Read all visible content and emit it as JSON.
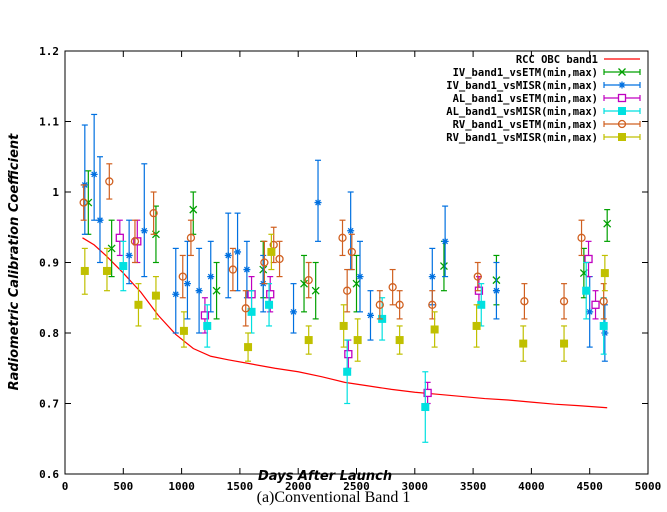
{
  "caption": "(a)Conventional Band 1",
  "chart_data": {
    "type": "scatter",
    "xlabel": "Days After Launch",
    "ylabel": "Radiometric Calibration Coefficient",
    "xlim": [
      0,
      5000
    ],
    "ylim": [
      0.6,
      1.2
    ],
    "xticks": [
      "0",
      "500",
      "1000",
      "1500",
      "2000",
      "2500",
      "3000",
      "3500",
      "4000",
      "4500",
      "5000"
    ],
    "yticks": [
      "0.6",
      "0.7",
      "0.8",
      "0.9",
      "1",
      "1.1",
      "1.2"
    ],
    "grid": false,
    "legend_position": "top-right",
    "series": [
      {
        "name": "RCC OBC band1",
        "kind": "line",
        "color": "#ff0000",
        "x": [
          150,
          250,
          350,
          500,
          650,
          800,
          950,
          1100,
          1250,
          1400,
          1600,
          1800,
          2000,
          2200,
          2400,
          2600,
          2800,
          3000,
          3200,
          3400,
          3600,
          3800,
          4000,
          4200,
          4400,
          4650
        ],
        "y": [
          0.935,
          0.925,
          0.91,
          0.885,
          0.858,
          0.825,
          0.798,
          0.778,
          0.767,
          0.762,
          0.756,
          0.75,
          0.745,
          0.738,
          0.73,
          0.725,
          0.72,
          0.716,
          0.713,
          0.71,
          0.707,
          0.705,
          0.702,
          0.699,
          0.697,
          0.694
        ]
      },
      {
        "name": "IV_band1_vsETM(min,max)",
        "kind": "errorbars",
        "marker": "x",
        "color": "#00a000",
        "points": [
          {
            "x": 200,
            "y": 0.985,
            "lo": 0.94,
            "hi": 1.03
          },
          {
            "x": 400,
            "y": 0.92,
            "lo": 0.88,
            "hi": 0.96
          },
          {
            "x": 780,
            "y": 0.94,
            "lo": 0.9,
            "hi": 0.98
          },
          {
            "x": 1100,
            "y": 0.975,
            "lo": 0.94,
            "hi": 1.0
          },
          {
            "x": 1300,
            "y": 0.86,
            "lo": 0.82,
            "hi": 0.9
          },
          {
            "x": 1700,
            "y": 0.89,
            "lo": 0.85,
            "hi": 0.93
          },
          {
            "x": 2050,
            "y": 0.87,
            "lo": 0.83,
            "hi": 0.91
          },
          {
            "x": 2150,
            "y": 0.86,
            "lo": 0.82,
            "hi": 0.9
          },
          {
            "x": 2500,
            "y": 0.87,
            "lo": 0.83,
            "hi": 0.91
          },
          {
            "x": 3250,
            "y": 0.895,
            "lo": 0.86,
            "hi": 0.93
          },
          {
            "x": 3700,
            "y": 0.875,
            "lo": 0.84,
            "hi": 0.91
          },
          {
            "x": 4450,
            "y": 0.885,
            "lo": 0.85,
            "hi": 0.92
          },
          {
            "x": 4650,
            "y": 0.955,
            "lo": 0.93,
            "hi": 0.975
          }
        ]
      },
      {
        "name": "IV_band1_vsMISR(min,max)",
        "kind": "errorbars",
        "marker": "asterisk",
        "color": "#0070e0",
        "points": [
          {
            "x": 170,
            "y": 1.01,
            "lo": 0.94,
            "hi": 1.095
          },
          {
            "x": 250,
            "y": 1.025,
            "lo": 0.96,
            "hi": 1.11
          },
          {
            "x": 300,
            "y": 0.96,
            "lo": 0.9,
            "hi": 1.05
          },
          {
            "x": 550,
            "y": 0.91,
            "lo": 0.87,
            "hi": 0.96
          },
          {
            "x": 680,
            "y": 0.945,
            "lo": 0.88,
            "hi": 1.04
          },
          {
            "x": 950,
            "y": 0.855,
            "lo": 0.8,
            "hi": 0.92
          },
          {
            "x": 1050,
            "y": 0.87,
            "lo": 0.82,
            "hi": 0.93
          },
          {
            "x": 1150,
            "y": 0.86,
            "lo": 0.8,
            "hi": 0.92
          },
          {
            "x": 1250,
            "y": 0.88,
            "lo": 0.83,
            "hi": 0.93
          },
          {
            "x": 1400,
            "y": 0.91,
            "lo": 0.85,
            "hi": 0.97
          },
          {
            "x": 1480,
            "y": 0.915,
            "lo": 0.86,
            "hi": 0.97
          },
          {
            "x": 1560,
            "y": 0.89,
            "lo": 0.85,
            "hi": 0.93
          },
          {
            "x": 1700,
            "y": 0.87,
            "lo": 0.83,
            "hi": 0.91
          },
          {
            "x": 1960,
            "y": 0.83,
            "lo": 0.8,
            "hi": 0.87
          },
          {
            "x": 2170,
            "y": 0.985,
            "lo": 0.93,
            "hi": 1.045
          },
          {
            "x": 2450,
            "y": 0.945,
            "lo": 0.89,
            "hi": 1.0
          },
          {
            "x": 2530,
            "y": 0.88,
            "lo": 0.83,
            "hi": 0.93
          },
          {
            "x": 2620,
            "y": 0.825,
            "lo": 0.79,
            "hi": 0.86
          },
          {
            "x": 3150,
            "y": 0.88,
            "lo": 0.84,
            "hi": 0.92
          },
          {
            "x": 3260,
            "y": 0.93,
            "lo": 0.88,
            "hi": 0.98
          },
          {
            "x": 3700,
            "y": 0.86,
            "lo": 0.82,
            "hi": 0.9
          },
          {
            "x": 4500,
            "y": 0.83,
            "lo": 0.78,
            "hi": 0.88
          },
          {
            "x": 4630,
            "y": 0.8,
            "lo": 0.76,
            "hi": 0.84
          }
        ]
      },
      {
        "name": "AL_band1_vsETM(min,max)",
        "kind": "errorbars",
        "marker": "square-open",
        "color": "#c000c0",
        "points": [
          {
            "x": 470,
            "y": 0.935,
            "lo": 0.91,
            "hi": 0.96
          },
          {
            "x": 620,
            "y": 0.93,
            "lo": 0.9,
            "hi": 0.96
          },
          {
            "x": 1200,
            "y": 0.825,
            "lo": 0.8,
            "hi": 0.85
          },
          {
            "x": 1600,
            "y": 0.855,
            "lo": 0.83,
            "hi": 0.88
          },
          {
            "x": 1760,
            "y": 0.855,
            "lo": 0.83,
            "hi": 0.88
          },
          {
            "x": 2430,
            "y": 0.77,
            "lo": 0.75,
            "hi": 0.79
          },
          {
            "x": 3110,
            "y": 0.715,
            "lo": 0.7,
            "hi": 0.73
          },
          {
            "x": 3550,
            "y": 0.86,
            "lo": 0.84,
            "hi": 0.88
          },
          {
            "x": 4490,
            "y": 0.905,
            "lo": 0.88,
            "hi": 0.93
          },
          {
            "x": 4550,
            "y": 0.84,
            "lo": 0.82,
            "hi": 0.86
          }
        ]
      },
      {
        "name": "AL_band1_vsMISR(min,max)",
        "kind": "errorbars",
        "marker": "square-filled",
        "color": "#00e0e0",
        "points": [
          {
            "x": 500,
            "y": 0.895,
            "lo": 0.86,
            "hi": 0.93
          },
          {
            "x": 1220,
            "y": 0.81,
            "lo": 0.78,
            "hi": 0.84
          },
          {
            "x": 1600,
            "y": 0.83,
            "lo": 0.8,
            "hi": 0.86
          },
          {
            "x": 1750,
            "y": 0.84,
            "lo": 0.81,
            "hi": 0.87
          },
          {
            "x": 2420,
            "y": 0.745,
            "lo": 0.7,
            "hi": 0.79
          },
          {
            "x": 2720,
            "y": 0.82,
            "lo": 0.79,
            "hi": 0.85
          },
          {
            "x": 3090,
            "y": 0.695,
            "lo": 0.645,
            "hi": 0.745
          },
          {
            "x": 3570,
            "y": 0.84,
            "lo": 0.81,
            "hi": 0.87
          },
          {
            "x": 4470,
            "y": 0.86,
            "lo": 0.82,
            "hi": 0.9
          },
          {
            "x": 4620,
            "y": 0.81,
            "lo": 0.77,
            "hi": 0.85
          }
        ]
      },
      {
        "name": "RV_band1_vsETM(min,max)",
        "kind": "errorbars",
        "marker": "circle-open",
        "color": "#d06020",
        "points": [
          {
            "x": 160,
            "y": 0.985,
            "lo": 0.96,
            "hi": 1.01
          },
          {
            "x": 380,
            "y": 1.015,
            "lo": 0.99,
            "hi": 1.04
          },
          {
            "x": 600,
            "y": 0.93,
            "lo": 0.9,
            "hi": 0.96
          },
          {
            "x": 760,
            "y": 0.97,
            "lo": 0.94,
            "hi": 1.0
          },
          {
            "x": 1010,
            "y": 0.88,
            "lo": 0.85,
            "hi": 0.91
          },
          {
            "x": 1080,
            "y": 0.935,
            "lo": 0.91,
            "hi": 0.96
          },
          {
            "x": 1440,
            "y": 0.89,
            "lo": 0.86,
            "hi": 0.92
          },
          {
            "x": 1550,
            "y": 0.835,
            "lo": 0.81,
            "hi": 0.86
          },
          {
            "x": 1710,
            "y": 0.9,
            "lo": 0.87,
            "hi": 0.93
          },
          {
            "x": 1790,
            "y": 0.925,
            "lo": 0.9,
            "hi": 0.95
          },
          {
            "x": 1840,
            "y": 0.905,
            "lo": 0.88,
            "hi": 0.93
          },
          {
            "x": 2090,
            "y": 0.875,
            "lo": 0.85,
            "hi": 0.9
          },
          {
            "x": 2380,
            "y": 0.935,
            "lo": 0.91,
            "hi": 0.96
          },
          {
            "x": 2420,
            "y": 0.86,
            "lo": 0.83,
            "hi": 0.89
          },
          {
            "x": 2460,
            "y": 0.915,
            "lo": 0.89,
            "hi": 0.94
          },
          {
            "x": 2700,
            "y": 0.84,
            "lo": 0.82,
            "hi": 0.86
          },
          {
            "x": 2810,
            "y": 0.865,
            "lo": 0.84,
            "hi": 0.89
          },
          {
            "x": 2870,
            "y": 0.84,
            "lo": 0.82,
            "hi": 0.86
          },
          {
            "x": 3150,
            "y": 0.84,
            "lo": 0.82,
            "hi": 0.86
          },
          {
            "x": 3540,
            "y": 0.88,
            "lo": 0.86,
            "hi": 0.9
          },
          {
            "x": 3940,
            "y": 0.845,
            "lo": 0.82,
            "hi": 0.87
          },
          {
            "x": 4280,
            "y": 0.845,
            "lo": 0.82,
            "hi": 0.87
          },
          {
            "x": 4430,
            "y": 0.935,
            "lo": 0.91,
            "hi": 0.96
          },
          {
            "x": 4620,
            "y": 0.845,
            "lo": 0.82,
            "hi": 0.87
          }
        ]
      },
      {
        "name": "RV_band1_vsMISR(min,max)",
        "kind": "errorbars",
        "marker": "square-filled",
        "color": "#c0c000",
        "points": [
          {
            "x": 170,
            "y": 0.888,
            "lo": 0.855,
            "hi": 0.92
          },
          {
            "x": 360,
            "y": 0.888,
            "lo": 0.86,
            "hi": 0.92
          },
          {
            "x": 630,
            "y": 0.84,
            "lo": 0.81,
            "hi": 0.87
          },
          {
            "x": 780,
            "y": 0.853,
            "lo": 0.82,
            "hi": 0.88
          },
          {
            "x": 1020,
            "y": 0.803,
            "lo": 0.78,
            "hi": 0.83
          },
          {
            "x": 1570,
            "y": 0.78,
            "lo": 0.76,
            "hi": 0.8
          },
          {
            "x": 1770,
            "y": 0.915,
            "lo": 0.89,
            "hi": 0.94
          },
          {
            "x": 2090,
            "y": 0.79,
            "lo": 0.77,
            "hi": 0.81
          },
          {
            "x": 2390,
            "y": 0.81,
            "lo": 0.78,
            "hi": 0.84
          },
          {
            "x": 2510,
            "y": 0.79,
            "lo": 0.76,
            "hi": 0.82
          },
          {
            "x": 2870,
            "y": 0.79,
            "lo": 0.77,
            "hi": 0.81
          },
          {
            "x": 3170,
            "y": 0.805,
            "lo": 0.78,
            "hi": 0.83
          },
          {
            "x": 3530,
            "y": 0.81,
            "lo": 0.78,
            "hi": 0.84
          },
          {
            "x": 3930,
            "y": 0.785,
            "lo": 0.76,
            "hi": 0.81
          },
          {
            "x": 4280,
            "y": 0.785,
            "lo": 0.76,
            "hi": 0.81
          },
          {
            "x": 4630,
            "y": 0.885,
            "lo": 0.86,
            "hi": 0.91
          }
        ]
      }
    ]
  }
}
